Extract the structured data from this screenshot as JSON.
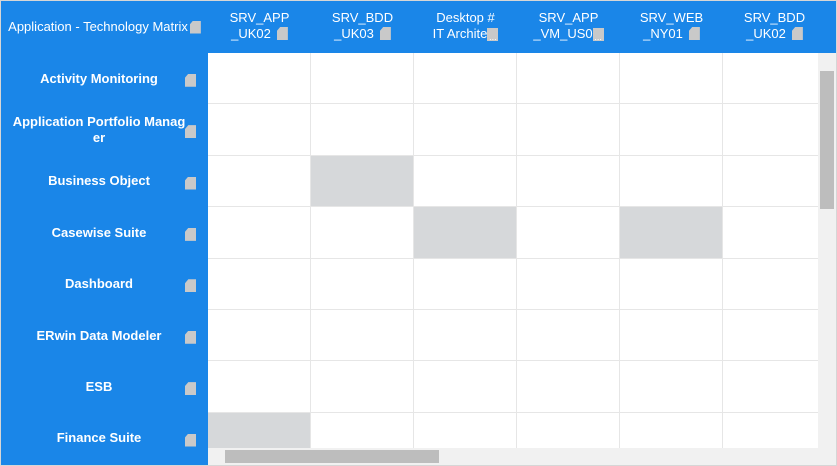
{
  "header": {
    "title": "Application - Technology Matrix"
  },
  "columns": [
    {
      "lines": [
        "SRV_APP",
        "_UK02"
      ]
    },
    {
      "lines": [
        "SRV_BDD",
        "_UK03"
      ]
    },
    {
      "lines": [
        "Desktop #",
        "IT Archite"
      ],
      "truncated": true
    },
    {
      "lines": [
        "SRV_APP",
        "_VM_US0"
      ],
      "truncated": true
    },
    {
      "lines": [
        "SRV_WEB",
        "_NY01"
      ]
    },
    {
      "lines": [
        "SRV_BDD",
        "_UK02"
      ]
    }
  ],
  "rows": [
    "Activity Monitoring",
    "Application Portfolio Manager",
    "Business Object",
    "Casewise Suite",
    "Dashboard",
    "ERwin Data Modeler",
    "ESB",
    "Finance Suite"
  ],
  "highlighted_cells": [
    [
      2,
      1
    ],
    [
      3,
      2
    ],
    [
      3,
      4
    ],
    [
      7,
      0
    ]
  ]
}
